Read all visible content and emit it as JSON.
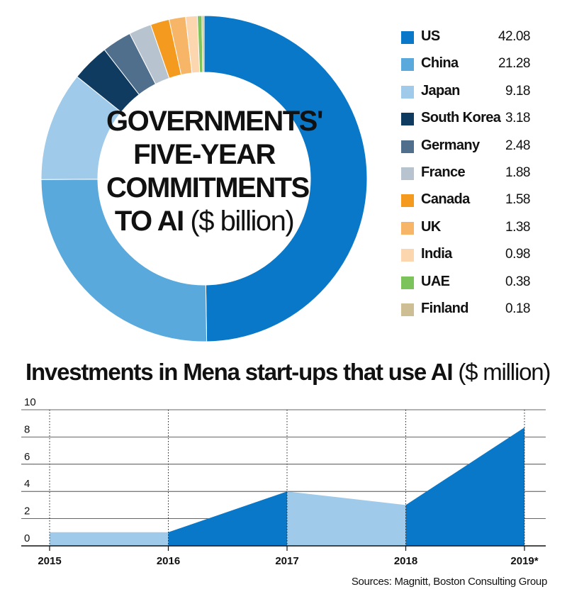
{
  "chart_data": [
    {
      "type": "pie",
      "variant": "donut",
      "title_lines": [
        "GOVERNMENTS'",
        "FIVE-YEAR",
        "COMMITMENTS",
        "TO AI"
      ],
      "title_unit": "($ billion)",
      "legend_position": "right",
      "slices": [
        {
          "label": "US",
          "value": 42.08,
          "color": "#0a78c8"
        },
        {
          "label": "China",
          "value": 21.28,
          "color": "#5aa9dc"
        },
        {
          "label": "Japan",
          "value": 9.18,
          "color": "#9fcaea"
        },
        {
          "label": "South Korea",
          "value": 3.18,
          "color": "#0f3b61"
        },
        {
          "label": "Germany",
          "value": 2.48,
          "color": "#4f6f8d"
        },
        {
          "label": "France",
          "value": 1.88,
          "color": "#b7c3cf"
        },
        {
          "label": "Canada",
          "value": 1.58,
          "color": "#f39a1f"
        },
        {
          "label": "UK",
          "value": 1.38,
          "color": "#f6b567"
        },
        {
          "label": "India",
          "value": 0.98,
          "color": "#fbd6ae"
        },
        {
          "label": "UAE",
          "value": 0.38,
          "color": "#7cc35b"
        },
        {
          "label": "Finland",
          "value": 0.18,
          "color": "#cdbf93"
        }
      ]
    },
    {
      "type": "area",
      "title": "Investments in Mena start-ups that use AI",
      "title_unit": "($ million)",
      "x": [
        "2015",
        "2016",
        "2017",
        "2018",
        "2019*"
      ],
      "values": [
        1,
        1,
        4,
        3,
        8.7
      ],
      "ylim": [
        0,
        10
      ],
      "yticks": [
        "0",
        "2",
        "4",
        "6",
        "8",
        "10"
      ],
      "grid": true,
      "colors": {
        "rising": "#0a78c8",
        "flat_or_falling": "#9fcaea"
      }
    }
  ],
  "source": "Sources: Magnitt, Boston Consulting Group"
}
